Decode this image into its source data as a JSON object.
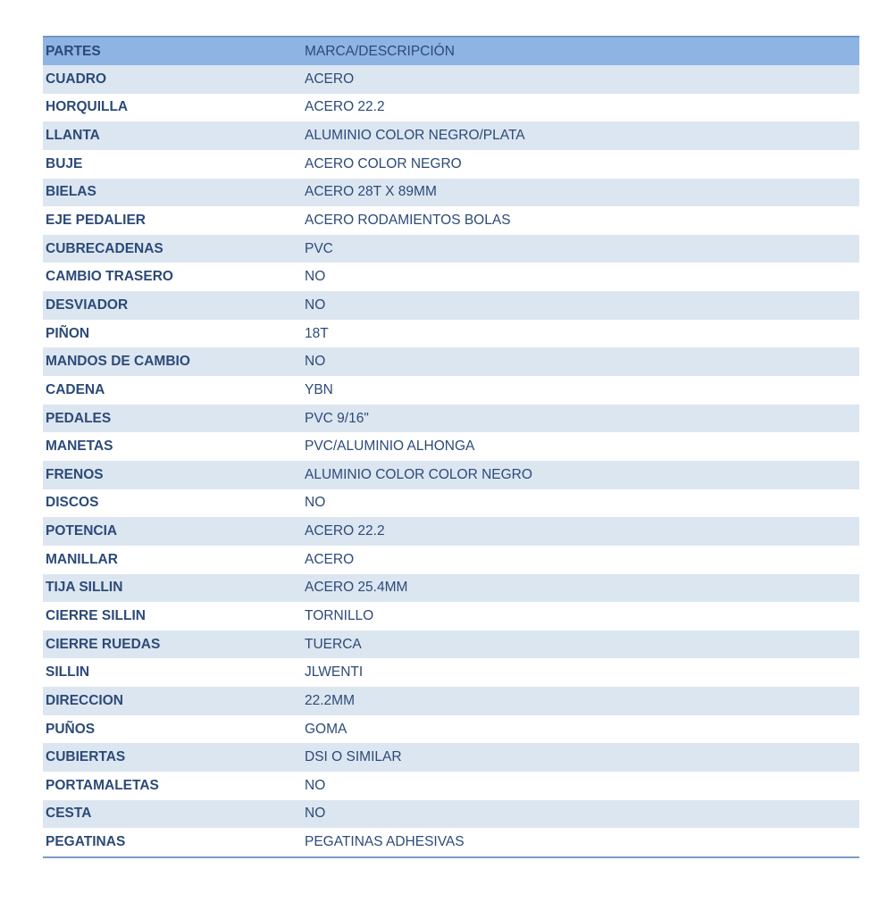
{
  "table": {
    "headers": [
      "PARTES",
      "MARCA/DESCRIPCIÓN"
    ],
    "rows": [
      [
        "CUADRO",
        "ACERO"
      ],
      [
        "HORQUILLA",
        "ACERO 22.2"
      ],
      [
        "LLANTA",
        "ALUMINIO COLOR NEGRO/PLATA"
      ],
      [
        "BUJE",
        "ACERO COLOR NEGRO"
      ],
      [
        "BIELAS",
        "ACERO 28T X 89MM"
      ],
      [
        "EJE PEDALIER",
        "ACERO RODAMIENTOS BOLAS"
      ],
      [
        "CUBRECADENAS",
        "PVC"
      ],
      [
        "CAMBIO TRASERO",
        "NO"
      ],
      [
        "DESVIADOR",
        "NO"
      ],
      [
        "PIÑON",
        "18T"
      ],
      [
        "MANDOS DE CAMBIO",
        "NO"
      ],
      [
        "CADENA",
        "YBN"
      ],
      [
        "PEDALES",
        "PVC 9/16\""
      ],
      [
        "MANETAS",
        "PVC/ALUMINIO ALHONGA"
      ],
      [
        "FRENOS",
        "ALUMINIO COLOR COLOR NEGRO"
      ],
      [
        "DISCOS",
        "NO"
      ],
      [
        "POTENCIA",
        "ACERO 22.2"
      ],
      [
        "MANILLAR",
        "ACERO"
      ],
      [
        "TIJA SILLIN",
        "ACERO 25.4MM"
      ],
      [
        "CIERRE SILLIN",
        "TORNILLO"
      ],
      [
        "CIERRE RUEDAS",
        "TUERCA"
      ],
      [
        "SILLIN",
        "JLWENTI"
      ],
      [
        "DIRECCION",
        "22.2MM"
      ],
      [
        "PUÑOS",
        "GOMA"
      ],
      [
        "CUBIERTAS",
        "DSI O SIMILAR"
      ],
      [
        "PORTAMALETAS",
        "NO"
      ],
      [
        "CESTA",
        "NO"
      ],
      [
        "PEGATINAS",
        "PEGATINAS ADHESIVAS"
      ]
    ]
  },
  "colors": {
    "header_bg": "#8eb4e3",
    "stripe_bg": "#dce6f1",
    "text": "#2c4a78"
  }
}
